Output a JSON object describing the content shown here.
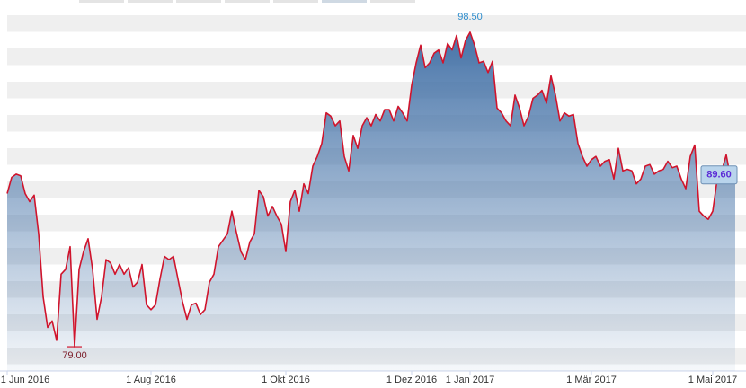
{
  "chart_data": {
    "type": "area-line",
    "categories": [
      "1 Jun 2016",
      null,
      null,
      null,
      null,
      null,
      null,
      null,
      null,
      null,
      null,
      null,
      null,
      null,
      null,
      null,
      null,
      null,
      null,
      null,
      null,
      null,
      null,
      null,
      null,
      null,
      null,
      null,
      null,
      null,
      null,
      null,
      "1 Aug 2016",
      null,
      null,
      null,
      null,
      null,
      null,
      null,
      null,
      null,
      null,
      null,
      null,
      null,
      null,
      null,
      null,
      null,
      null,
      null,
      null,
      null,
      null,
      null,
      null,
      null,
      null,
      null,
      null,
      null,
      "1 Okt 2016",
      null,
      null,
      null,
      null,
      null,
      null,
      null,
      null,
      null,
      null,
      null,
      null,
      null,
      null,
      null,
      null,
      null,
      null,
      null,
      null,
      null,
      null,
      null,
      null,
      null,
      null,
      null,
      "1 Dez 2016",
      null,
      null,
      null,
      null,
      null,
      null,
      null,
      null,
      null,
      null,
      null,
      null,
      "1 Jan 2017",
      null,
      null,
      null,
      null,
      null,
      null,
      null,
      null,
      null,
      null,
      null,
      null,
      null,
      null,
      null,
      null,
      null,
      null,
      null,
      null,
      null,
      null,
      null,
      null,
      null,
      null,
      "1 Mär 2017",
      null,
      null,
      null,
      null,
      null,
      null,
      null,
      null,
      null,
      null,
      null,
      null,
      null,
      null,
      null,
      null,
      null,
      null,
      null,
      null,
      null,
      null,
      null,
      null,
      null,
      null,
      "1 Mai 2017",
      null,
      null,
      null,
      null,
      null
    ],
    "values": [
      88.5,
      89.5,
      89.7,
      89.6,
      88.5,
      88.0,
      88.4,
      86.0,
      82.1,
      80.2,
      80.6,
      79.4,
      83.5,
      83.8,
      85.2,
      79.0,
      83.8,
      84.9,
      85.7,
      83.8,
      80.7,
      82.1,
      84.4,
      84.2,
      83.5,
      84.1,
      83.5,
      83.9,
      82.7,
      83.0,
      84.1,
      81.6,
      81.3,
      81.6,
      83.2,
      84.6,
      84.4,
      84.6,
      83.2,
      81.8,
      80.7,
      81.6,
      81.7,
      81.0,
      81.3,
      83.0,
      83.5,
      85.2,
      85.6,
      86.0,
      87.4,
      86.1,
      84.9,
      84.4,
      85.5,
      86.0,
      88.7,
      88.3,
      87.1,
      87.7,
      87.1,
      86.6,
      84.9,
      88.0,
      88.7,
      87.4,
      89.1,
      88.5,
      90.2,
      90.8,
      91.6,
      93.5,
      93.3,
      92.7,
      93.0,
      90.8,
      89.9,
      92.1,
      91.3,
      92.7,
      93.2,
      92.7,
      93.4,
      93.0,
      93.7,
      93.7,
      93.0,
      93.9,
      93.5,
      93.0,
      95.2,
      96.6,
      97.7,
      96.3,
      96.6,
      97.2,
      97.4,
      96.6,
      97.8,
      97.4,
      98.3,
      96.9,
      98.0,
      98.5,
      97.7,
      96.6,
      96.7,
      96.0,
      96.7,
      93.8,
      93.5,
      93.0,
      92.7,
      94.6,
      93.8,
      92.7,
      93.3,
      94.4,
      94.6,
      94.9,
      94.1,
      95.8,
      94.6,
      93.0,
      93.5,
      93.3,
      93.4,
      91.6,
      90.8,
      90.2,
      90.6,
      90.8,
      90.2,
      90.5,
      90.6,
      89.4,
      91.3,
      89.9,
      90.0,
      89.9,
      89.1,
      89.4,
      90.2,
      90.3,
      89.7,
      89.9,
      90.0,
      90.5,
      90.1,
      90.2,
      89.4,
      88.8,
      90.8,
      91.5,
      87.4,
      87.1,
      86.9,
      87.4,
      89.4,
      89.9,
      90.9,
      89.4,
      89.6
    ],
    "value_labels": [
      null,
      null,
      null,
      null,
      null,
      null,
      null,
      null,
      null,
      null,
      null,
      null,
      null,
      null,
      null,
      "79.00",
      null,
      null,
      null,
      null,
      null,
      null,
      null,
      null,
      null,
      null,
      null,
      null,
      null,
      null,
      null,
      null,
      null,
      null,
      null,
      null,
      null,
      null,
      null,
      null,
      null,
      null,
      null,
      null,
      null,
      null,
      null,
      null,
      null,
      null,
      null,
      null,
      null,
      null,
      null,
      null,
      null,
      null,
      null,
      null,
      null,
      null,
      null,
      null,
      null,
      null,
      null,
      null,
      null,
      null,
      null,
      null,
      null,
      null,
      null,
      null,
      null,
      null,
      null,
      null,
      null,
      null,
      null,
      null,
      null,
      null,
      null,
      null,
      null,
      null,
      null,
      null,
      null,
      null,
      null,
      null,
      null,
      null,
      null,
      null,
      null,
      null,
      null,
      "98.50",
      null,
      null,
      null,
      null,
      null,
      null,
      null,
      null,
      null,
      null,
      null,
      null,
      null,
      null,
      null,
      null,
      null,
      null,
      null,
      null,
      null,
      null,
      null,
      null,
      null,
      null,
      null,
      null,
      null,
      null,
      null,
      null,
      null,
      null,
      null,
      null,
      null,
      null,
      null,
      null,
      null,
      null,
      null,
      null,
      null,
      null,
      null,
      null,
      null,
      null,
      null,
      null,
      null,
      null,
      null,
      null,
      null,
      null,
      "89.60"
    ],
    "color": "#d0142c",
    "ylim": [
      77.5,
      100.5
    ]
  }
}
